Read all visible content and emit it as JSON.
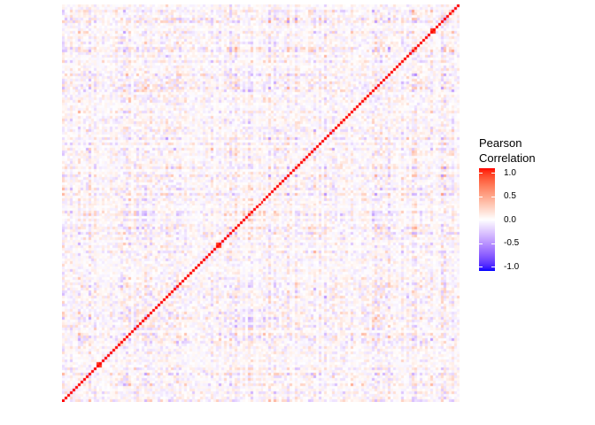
{
  "page": {
    "background_color": "#FFFFFF",
    "text_color": "#000000"
  },
  "chart_data": {
    "type": "heatmap",
    "title": "",
    "xlabel": "",
    "ylabel": "",
    "axes": {
      "x_tick_labels_visible": false,
      "y_tick_labels_visible": false,
      "grid": false
    },
    "legend": {
      "position": "right",
      "title": "Pearson\nCorrelation",
      "ticks": [
        "1.0",
        "0.5",
        "0.0",
        "-0.5",
        "-1.0"
      ],
      "tick_values": [
        1.0,
        0.5,
        0.0,
        -0.5,
        -1.0
      ],
      "tick_mark_color": "#FFFFFF"
    },
    "scale": {
      "low_color": "#0000FF",
      "mid_color": "#FFFFFF",
      "high_color": "#FF0000",
      "midpoint": 0,
      "limits": [
        -1,
        1
      ],
      "interpolation": "Lab"
    },
    "matrix": {
      "n": 150,
      "symmetric": true,
      "diagonal_value": 1.0,
      "diagonal_direction": "bottom-left to top-right",
      "offdiagonal_typical_range": [
        -0.4,
        0.4
      ],
      "high_corr_pairs": [
        13,
        58,
        139
      ],
      "high_corr_value": 0.92,
      "generator": {
        "seed": 42,
        "factors": 7,
        "loading_min": 0.25,
        "loading_spread": 0.55,
        "loading_power": 1.5,
        "noise_sd": 0.02
      }
    }
  }
}
